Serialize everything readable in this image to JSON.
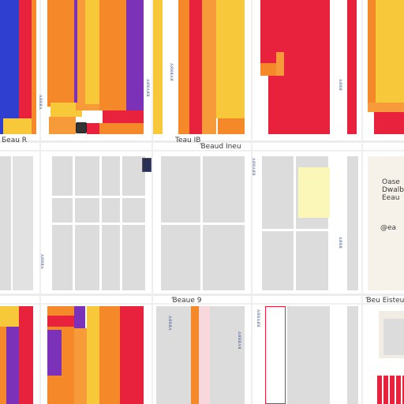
{
  "colors": {
    "orange": "#f5892a",
    "yellow": "#f7c93a",
    "red": "#e8223c",
    "purple": "#7b32b8",
    "blue": "#2f3fd0",
    "gray_panel": "#dcdcdc",
    "light_yellow": "#fbf7b8",
    "grid_line": "#ececec"
  },
  "labels": {
    "top_left": "Ƃeau R",
    "top_mid": "Teau IB",
    "top_mid_right": "Ɓeaud Ineu",
    "bottom_mid": "Ɓeaue 9",
    "bottom_right": "Ɓeu Eisteu",
    "side_note_1": "Oase",
    "side_note_2": "Dwalb",
    "side_note_3": "Eeau",
    "side_note_4": "@ea"
  },
  "tick_labels": {
    "col1": "ᴧᴙᴚᴙᴧ",
    "col2": "ᴧᴙᴚᴧᴙᴚ",
    "col3": "ᴧᴙᴚᴙᴧᴚ",
    "col4": "ᴧᴙᴚᴙ"
  },
  "icons": [
    "palette-icon",
    "square-icon",
    "grid-icon"
  ]
}
